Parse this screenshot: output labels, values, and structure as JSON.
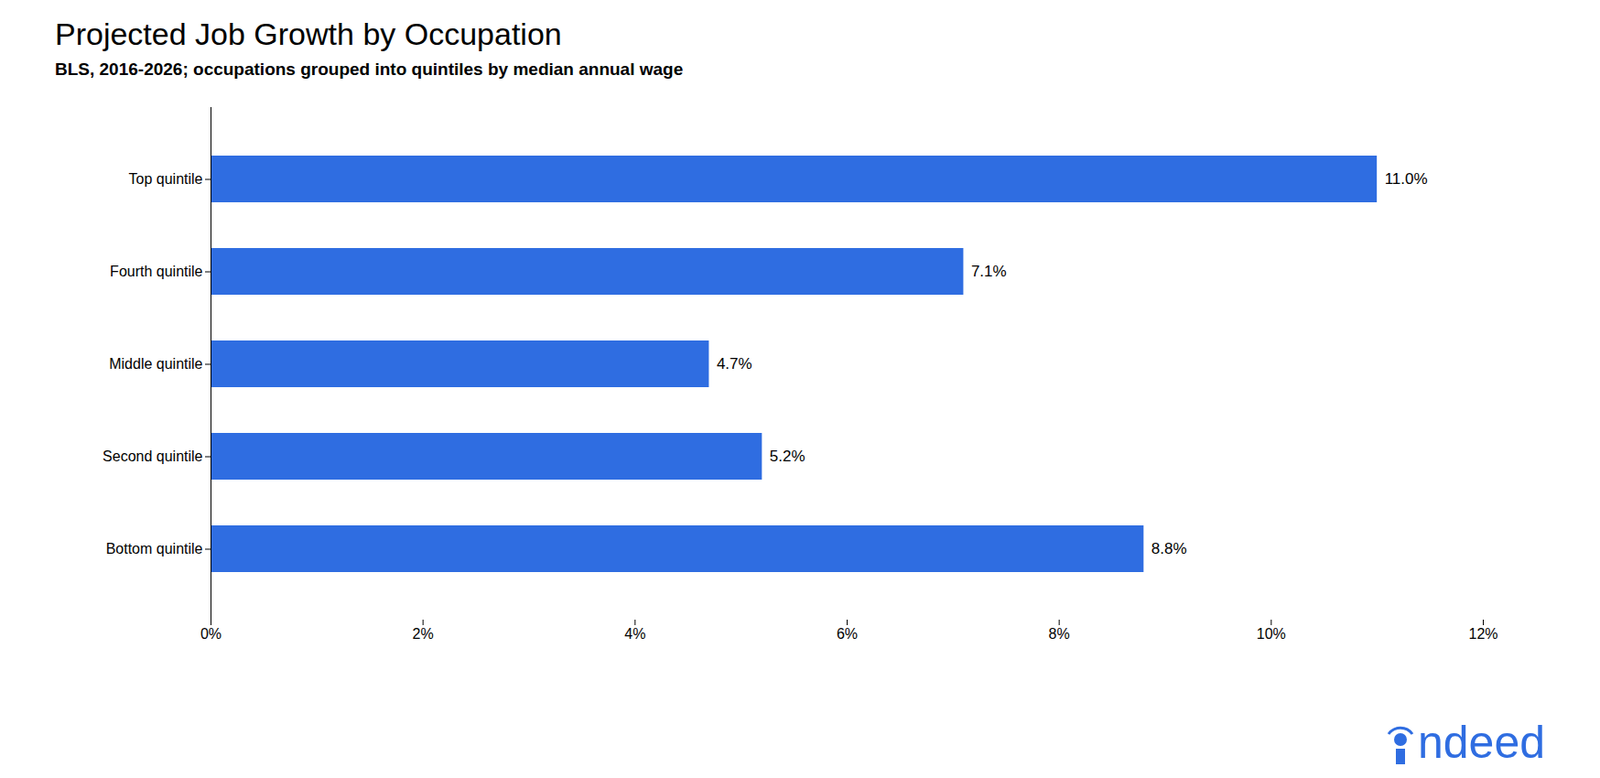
{
  "chart_data": {
    "type": "bar",
    "orientation": "horizontal",
    "title": "Projected Job Growth by Occupation",
    "subtitle": "BLS, 2016-2026; occupations grouped into quintiles by median annual wage",
    "categories": [
      "Top quintile",
      "Fourth quintile",
      "Middle quintile",
      "Second quintile",
      "Bottom quintile"
    ],
    "values": [
      11.0,
      7.1,
      4.7,
      5.2,
      8.8
    ],
    "value_labels": [
      "11.0%",
      "7.1%",
      "4.7%",
      "5.2%",
      "8.8%"
    ],
    "data_labels": true,
    "color": "#2f6de1",
    "xlim": [
      0,
      12
    ],
    "xticks": [
      {
        "value": 0,
        "label": "0%"
      },
      {
        "value": 2,
        "label": "2%"
      },
      {
        "value": 4,
        "label": "4%"
      },
      {
        "value": 6,
        "label": "6%"
      },
      {
        "value": 8,
        "label": "8%"
      },
      {
        "value": 10,
        "label": "10%"
      },
      {
        "value": 12,
        "label": "12%"
      }
    ],
    "grid": false,
    "annotations": [
      "ndeed"
    ]
  }
}
